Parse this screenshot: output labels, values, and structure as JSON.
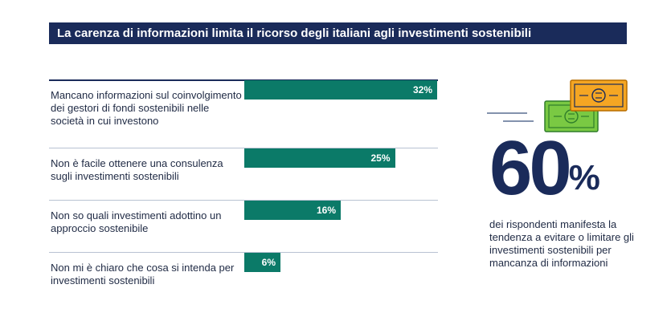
{
  "header": {
    "title": "La carenza di informazioni limita il ricorso degli italiani agli investimenti sostenibili"
  },
  "chart_data": {
    "type": "bar",
    "orientation": "horizontal",
    "categories": [
      "Mancano informazioni sul coinvolgimento dei gestori di fondi sostenibili nelle società in cui investono",
      "Non è facile ottenere una consulenza sugli investimenti sostenibili",
      "Non so quali investimenti adottino un approccio sostenibile",
      "Non mi è chiaro che cosa si intenda per investimenti sostenibili"
    ],
    "values": [
      32,
      25,
      16,
      6
    ],
    "value_labels": [
      "32%",
      "25%",
      "16%",
      "6%"
    ],
    "bar_color": "#0b7a68",
    "xlim": [
      0,
      40
    ],
    "grid": false
  },
  "stat": {
    "number": "60",
    "unit": "%",
    "description": "dei rispondenti manifesta la tendenza a evitare o limitare gli investimenti sostenibili per mancanza di informazioni"
  },
  "colors": {
    "title_background": "#1a2b5a",
    "accent_green": "#0b7a68",
    "banknote_green": "#7ac943",
    "banknote_orange": "#f5a623"
  },
  "icons": [
    "banknote-green-icon",
    "banknote-orange-icon"
  ]
}
